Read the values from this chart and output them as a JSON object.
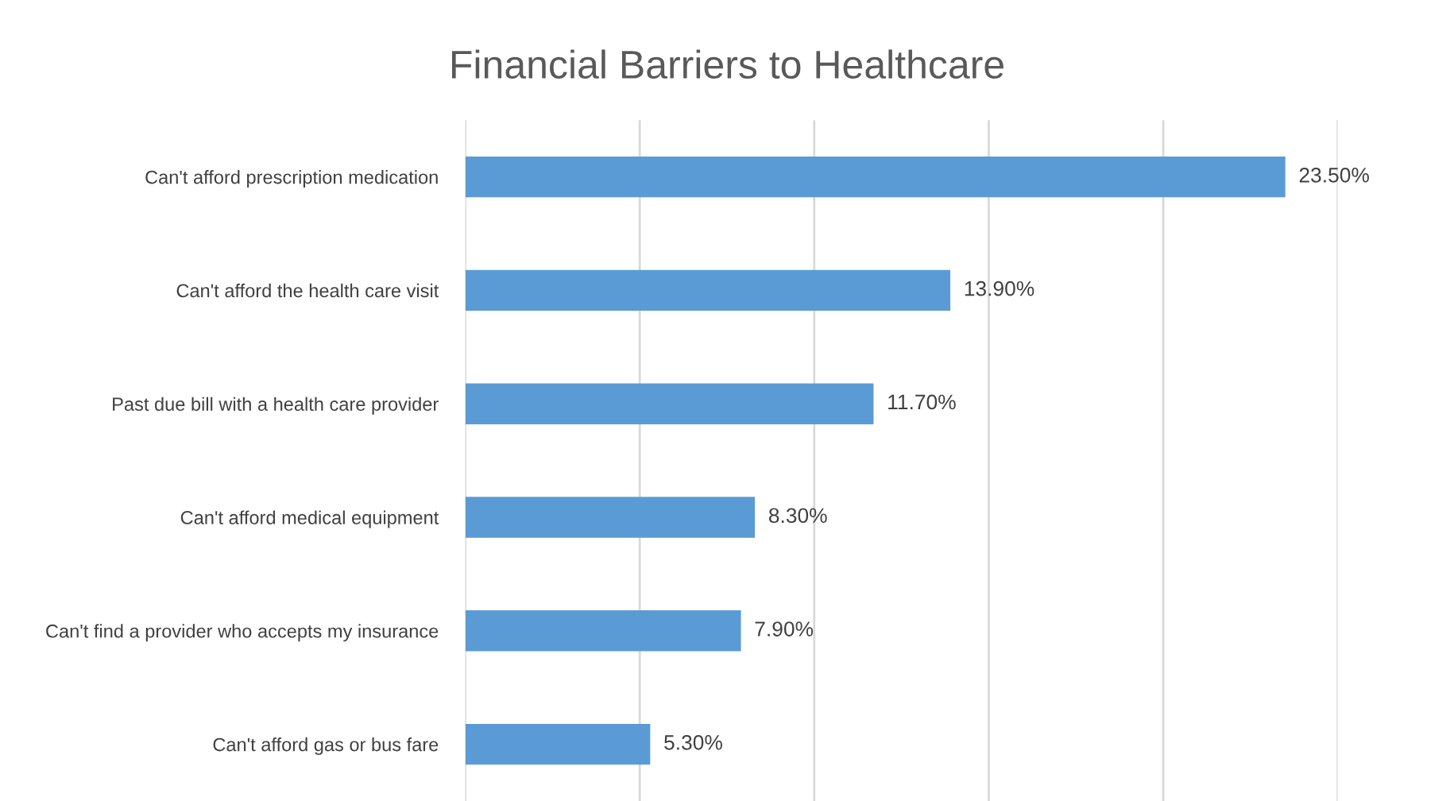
{
  "chart_data": {
    "type": "bar",
    "orientation": "horizontal",
    "title": "Financial Barriers to Healthcare",
    "categories": [
      "Can't afford prescription medication",
      "Can't afford the health care visit",
      "Past due bill with a health care provider",
      "Can't afford medical equipment",
      "Can't find a provider who accepts my insurance",
      "Can't afford gas or bus fare"
    ],
    "values": [
      23.5,
      13.9,
      11.7,
      8.3,
      7.9,
      5.3
    ],
    "value_labels": [
      "23.50%",
      "13.90%",
      "11.70%",
      "8.30%",
      "7.90%",
      "5.30%"
    ],
    "color": "#5b9bd5",
    "xlim": [
      0,
      25
    ],
    "xticks": [
      {
        "value": 0,
        "label": null
      },
      {
        "value": 5,
        "label": null
      },
      {
        "value": 10,
        "label": null
      },
      {
        "value": 15,
        "label": null
      },
      {
        "value": 20,
        "label": null
      },
      {
        "value": 25,
        "label": null
      }
    ],
    "grid": "x",
    "tick_labels": "y",
    "legend": false
  }
}
